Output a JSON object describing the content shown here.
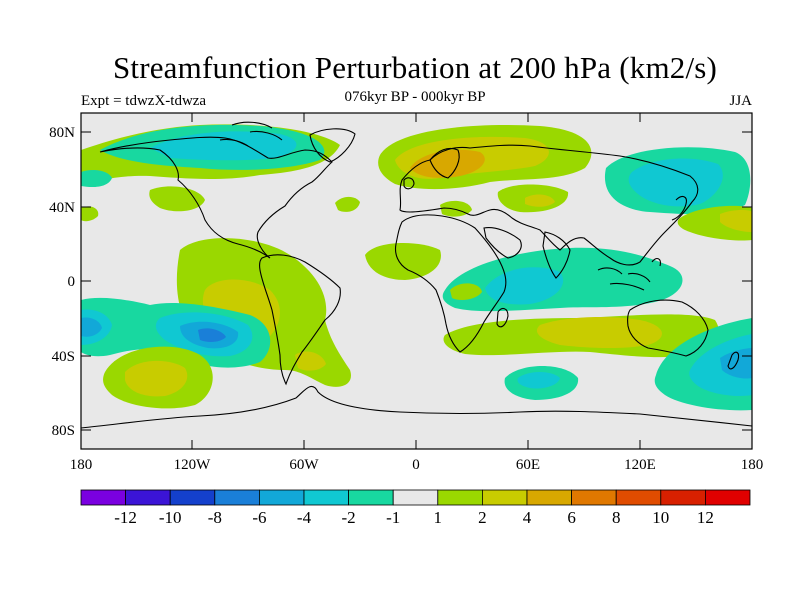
{
  "title": "Streamfunction Perturbation at 200 hPa (km2/s)",
  "experiment": "Expt = tdwzX-tdwza",
  "period": "076kyr BP - 000kyr BP",
  "season": "JJA",
  "map": {
    "lat_ticks": [
      "80N",
      "40N",
      "0",
      "40S",
      "80S"
    ],
    "lon_ticks": [
      "180",
      "120W",
      "60W",
      "0",
      "60E",
      "120E",
      "180"
    ]
  },
  "colorbar": {
    "labels": [
      "-12",
      "-10",
      "-8",
      "-6",
      "-4",
      "-2",
      "-1",
      "1",
      "2",
      "4",
      "6",
      "8",
      "10",
      "12"
    ],
    "colors": [
      "#7a00e0",
      "#3b14d6",
      "#1440cc",
      "#1a7fd8",
      "#12a8d8",
      "#10c8d2",
      "#18d8a0",
      "#e8e8e8",
      "#9ad800",
      "#c8cc00",
      "#d8a800",
      "#e07800",
      "#e04c00",
      "#d82000",
      "#e00000"
    ]
  },
  "colors": {
    "neutral": "#e8e8e8",
    "pos1": "#9ad800",
    "pos2": "#c8cc00",
    "pos3": "#d8a800",
    "pos4": "#e07800",
    "neg1": "#18d8a0",
    "neg2": "#10c8d2",
    "neg3": "#12a8d8",
    "neg4": "#1a7fd8"
  }
}
